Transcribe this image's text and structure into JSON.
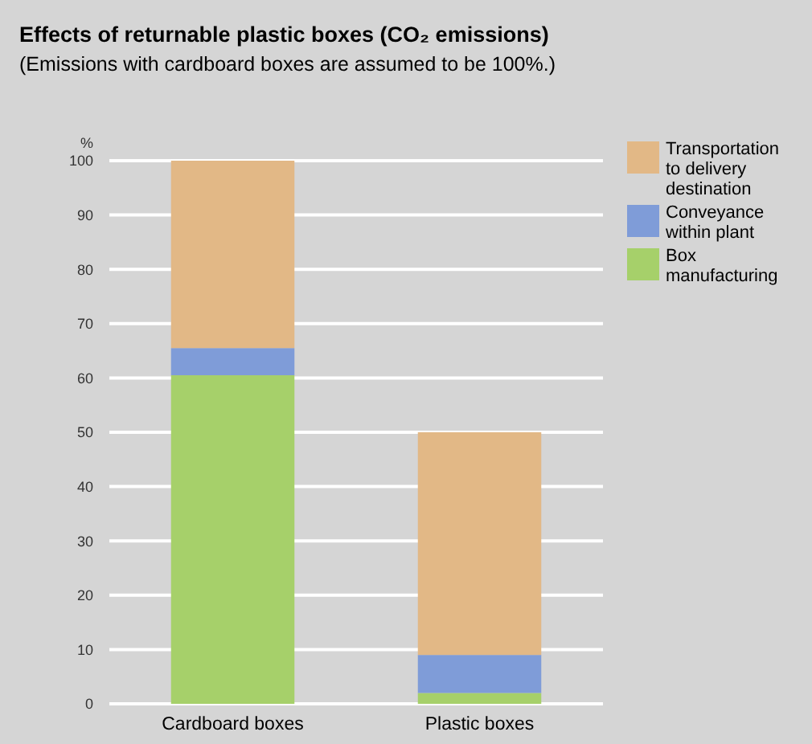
{
  "chart_data": {
    "type": "bar",
    "title": "Effects of returnable plastic boxes (CO₂ emissions)",
    "subtitle": "(Emissions with cardboard boxes are assumed to be 100%.)",
    "ylabel": "%",
    "categories": [
      "Cardboard boxes",
      "Plastic boxes"
    ],
    "stacked": true,
    "series": [
      {
        "name": "Box manufacturing",
        "color": "#a6d06a",
        "values": [
          60.5,
          2
        ]
      },
      {
        "name": "Conveyance within plant",
        "color": "#7f9cd8",
        "values": [
          5,
          7
        ]
      },
      {
        "name": "Transportation to delivery destination",
        "color": "#e2b886",
        "values": [
          34.5,
          41
        ]
      }
    ],
    "ylim": [
      0,
      100
    ],
    "yticks": [
      0,
      10,
      20,
      30,
      40,
      50,
      60,
      70,
      80,
      90,
      100
    ],
    "grid": true,
    "legend": "top right"
  }
}
